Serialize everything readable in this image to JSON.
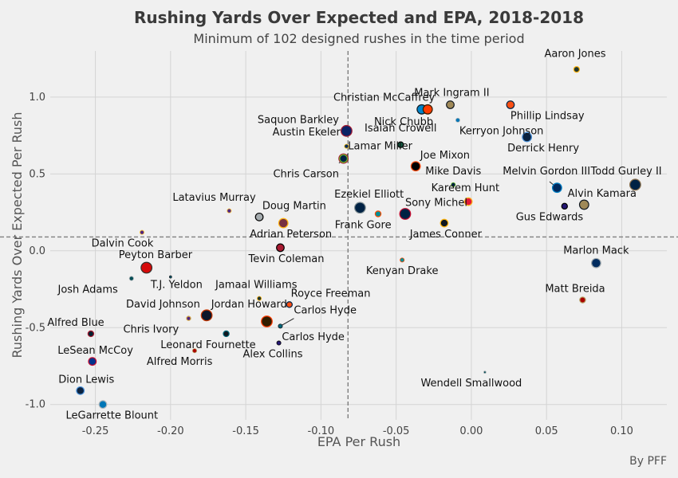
{
  "chart_data": {
    "type": "scatter",
    "title": "Rushing Yards Over Expected and EPA, 2018-2018",
    "subtitle": "Minimum of 102 designed rushes in the time period",
    "xlabel": "EPA Per Rush",
    "ylabel": "Rushing Yards Over Expected Per Rush",
    "credit": "By PFF",
    "xlim": [
      -0.28,
      0.13
    ],
    "ylim": [
      -1.1,
      1.3
    ],
    "xticks": [
      -0.25,
      -0.2,
      -0.15,
      -0.1,
      -0.05,
      0.0,
      0.05,
      0.1
    ],
    "xtick_labels": [
      "-0.25",
      "-0.20",
      "-0.15",
      "-0.10",
      "-0.05",
      "0.00",
      "0.05",
      "0.10"
    ],
    "yticks": [
      -1.0,
      -0.5,
      0.0,
      0.5,
      1.0
    ],
    "ytick_labels": [
      "-1.0",
      "-0.5",
      "0.0",
      "0.5",
      "1.0"
    ],
    "grid": true,
    "reference_lines": {
      "x": -0.082,
      "y": 0.09
    },
    "points": [
      {
        "name": "Aaron Jones",
        "x": 0.07,
        "y": 1.18,
        "size": 3,
        "color": "#203731",
        "edge": "#ffb612"
      },
      {
        "name": "Mark Ingram II",
        "x": -0.014,
        "y": 0.95,
        "size": 4,
        "color": "#9f8958",
        "edge": "#101820"
      },
      {
        "name": "Christian McCaffrey",
        "x": -0.033,
        "y": 0.92,
        "size": 5,
        "color": "#0085ca",
        "edge": "#101820"
      },
      {
        "name": "Nick Chubb",
        "x": -0.029,
        "y": 0.92,
        "size": 5,
        "color": "#ff3c00",
        "edge": "#311d00"
      },
      {
        "name": "Phillip Lindsay",
        "x": 0.026,
        "y": 0.95,
        "size": 4,
        "color": "#fb4f14",
        "edge": "#002244"
      },
      {
        "name": "Kerryon Johnson",
        "x": -0.009,
        "y": 0.85,
        "size": 2,
        "color": "#0076b6",
        "edge": "#b0b7bc"
      },
      {
        "name": "Saquon Barkley",
        "x": -0.083,
        "y": 0.78,
        "size": 6,
        "color": "#0b2265",
        "edge": "#a71930"
      },
      {
        "name": "Derrick Henry",
        "x": 0.037,
        "y": 0.74,
        "size": 5,
        "color": "#0c2340",
        "edge": "#4b92db"
      },
      {
        "name": "Isaiah Crowell",
        "x": -0.047,
        "y": 0.69,
        "size": 3,
        "color": "#125740",
        "edge": "#000000"
      },
      {
        "name": "Austin Ekeler",
        "x": -0.083,
        "y": 0.68,
        "size": 2,
        "color": "#002a5e",
        "edge": "#ffc20e"
      },
      {
        "name": "Lamar Miller",
        "x": -0.085,
        "y": 0.6,
        "size": 5,
        "color": "#03202f",
        "edge": "#a71930"
      },
      {
        "name": "Chris Carson",
        "x": -0.085,
        "y": 0.6,
        "size": 4,
        "color": "#002244",
        "edge": "#69be28"
      },
      {
        "name": "Joe Mixon",
        "x": -0.037,
        "y": 0.55,
        "size": 5,
        "color": "#000000",
        "edge": "#fb4f14"
      },
      {
        "name": "Mike Davis",
        "x": -0.012,
        "y": 0.43,
        "size": 2,
        "color": "#002244",
        "edge": "#69be28"
      },
      {
        "name": "Melvin Gordon III",
        "x": 0.057,
        "y": 0.41,
        "size": 5,
        "color": "#002a5e",
        "edge": "#0080c6"
      },
      {
        "name": "Todd Gurley II",
        "x": 0.109,
        "y": 0.43,
        "size": 6,
        "color": "#002244",
        "edge": "#866d4b"
      },
      {
        "name": "Kareem Hunt",
        "x": -0.002,
        "y": 0.32,
        "size": 4,
        "color": "#e31837",
        "edge": "#ffb81c"
      },
      {
        "name": "Alvin Kamara",
        "x": 0.075,
        "y": 0.3,
        "size": 5,
        "color": "#9f8958",
        "edge": "#101820"
      },
      {
        "name": "Gus Edwards",
        "x": 0.062,
        "y": 0.29,
        "size": 3,
        "color": "#241773",
        "edge": "#000000"
      },
      {
        "name": "Ezekiel Elliott",
        "x": -0.074,
        "y": 0.28,
        "size": 6,
        "color": "#002244",
        "edge": "#869397"
      },
      {
        "name": "Frank Gore",
        "x": -0.062,
        "y": 0.24,
        "size": 3,
        "color": "#008e97",
        "edge": "#fc4c02"
      },
      {
        "name": "Sony Michel",
        "x": -0.044,
        "y": 0.24,
        "size": 6,
        "color": "#002244",
        "edge": "#c60c30"
      },
      {
        "name": "James Conner",
        "x": -0.018,
        "y": 0.18,
        "size": 4,
        "color": "#101820",
        "edge": "#ffb612"
      },
      {
        "name": "Latavius Murray",
        "x": -0.161,
        "y": 0.26,
        "size": 2,
        "color": "#4f2683",
        "edge": "#ffc62f"
      },
      {
        "name": "Doug Martin",
        "x": -0.141,
        "y": 0.22,
        "size": 4,
        "color": "#a5acaf",
        "edge": "#000000"
      },
      {
        "name": "Adrian Peterson",
        "x": -0.125,
        "y": 0.18,
        "size": 5,
        "color": "#773141",
        "edge": "#ffb612"
      },
      {
        "name": "Dalvin Cook",
        "x": -0.219,
        "y": 0.12,
        "size": 2,
        "color": "#4f2683",
        "edge": "#ffc62f"
      },
      {
        "name": "Tevin Coleman",
        "x": -0.127,
        "y": 0.02,
        "size": 4,
        "color": "#a71930",
        "edge": "#000000"
      },
      {
        "name": "Kenyan Drake",
        "x": -0.046,
        "y": -0.06,
        "size": 2,
        "color": "#008e97",
        "edge": "#fc4c02"
      },
      {
        "name": "Marlon Mack",
        "x": 0.083,
        "y": -0.08,
        "size": 5,
        "color": "#002c5f",
        "edge": "#a2aaad"
      },
      {
        "name": "Peyton Barber",
        "x": -0.216,
        "y": -0.11,
        "size": 6,
        "color": "#d50a0a",
        "edge": "#34302b"
      },
      {
        "name": "Josh Adams",
        "x": -0.226,
        "y": -0.18,
        "size": 2,
        "color": "#004c54",
        "edge": "#a5acaf"
      },
      {
        "name": "T.J. Yeldon",
        "x": -0.2,
        "y": -0.17,
        "size": 1,
        "color": "#006778",
        "edge": "#101820"
      },
      {
        "name": "Jamaal Williams",
        "x": -0.141,
        "y": -0.31,
        "size": 2,
        "color": "#203731",
        "edge": "#ffb612"
      },
      {
        "name": "Royce Freeman",
        "x": -0.121,
        "y": -0.35,
        "size": 3,
        "color": "#fb4f14",
        "edge": "#002244"
      },
      {
        "name": "David Johnson",
        "x": -0.188,
        "y": -0.44,
        "size": 2,
        "color": "#97233f",
        "edge": "#000000"
      },
      {
        "name": "Jordan Howard",
        "x": -0.176,
        "y": -0.42,
        "size": 6,
        "color": "#0b162a",
        "edge": "#c83803"
      },
      {
        "name": "Carlos Hyde",
        "x": -0.136,
        "y": -0.46,
        "size": 6,
        "color": "#311d00",
        "edge": "#ff3c00"
      },
      {
        "name": "Carlos Hyde",
        "x": -0.127,
        "y": -0.49,
        "size": 2,
        "color": "#006778",
        "edge": "#101820"
      },
      {
        "name": "Chris Ivory",
        "x": -0.188,
        "y": -0.44,
        "size": 2,
        "color": "#4f2683",
        "edge": "#ffc62f"
      },
      {
        "name": "Leonard Fournette",
        "x": -0.163,
        "y": -0.54,
        "size": 3,
        "color": "#101820",
        "edge": "#006778"
      },
      {
        "name": "Alex Collins",
        "x": -0.128,
        "y": -0.6,
        "size": 2,
        "color": "#241773",
        "edge": "#000000"
      },
      {
        "name": "Alfred Blue",
        "x": -0.253,
        "y": -0.54,
        "size": 3,
        "color": "#03202f",
        "edge": "#a71930"
      },
      {
        "name": "Alfred Morris",
        "x": -0.184,
        "y": -0.65,
        "size": 2,
        "color": "#aa0000",
        "edge": "#b3995d"
      },
      {
        "name": "LeSean McCoy",
        "x": -0.252,
        "y": -0.72,
        "size": 4,
        "color": "#00338d",
        "edge": "#c60c30"
      },
      {
        "name": "Matt Breida",
        "x": 0.074,
        "y": -0.32,
        "size": 3,
        "color": "#aa0000",
        "edge": "#b3995d"
      },
      {
        "name": "Wendell Smallwood",
        "x": 0.009,
        "y": -0.79,
        "size": 1,
        "color": "#004c54",
        "edge": "#a5acaf"
      },
      {
        "name": "Dion Lewis",
        "x": -0.26,
        "y": -0.91,
        "size": 4,
        "color": "#0c2340",
        "edge": "#4b92db"
      },
      {
        "name": "LeGarrette Blount",
        "x": -0.245,
        "y": -1.0,
        "size": 4,
        "color": "#0076b6",
        "edge": "#b0b7bc"
      }
    ],
    "labels": [
      {
        "text": "Aaron Jones",
        "x": 0.069,
        "y": 1.2,
        "anchor": "middle",
        "dy": -12
      },
      {
        "text": "Mark Ingram II",
        "x": -0.013,
        "y": 0.96,
        "anchor": "middle",
        "dy": -9
      },
      {
        "text": "Christian McCaffrey",
        "x": -0.058,
        "y": 0.93,
        "anchor": "middle",
        "dy": -9
      },
      {
        "text": "Phillip Lindsay",
        "x": 0.026,
        "y": 0.93,
        "anchor": "start",
        "dy": 14
      },
      {
        "text": "Nick Chubb",
        "x": -0.045,
        "y": 0.9,
        "anchor": "middle",
        "dy": 16
      },
      {
        "text": "Kerryon Johnson",
        "x": -0.008,
        "y": 0.83,
        "anchor": "start",
        "dy": 14
      },
      {
        "text": "Saquon Barkley",
        "x": -0.088,
        "y": 0.8,
        "anchor": "end",
        "dy": -6
      },
      {
        "text": "Derrick Henry",
        "x": 0.024,
        "y": 0.72,
        "anchor": "start",
        "dy": 14
      },
      {
        "text": "Isaiah Crowell",
        "x": -0.047,
        "y": 0.73,
        "anchor": "middle",
        "dy": -9
      },
      {
        "text": "Austin Ekeler",
        "x": -0.087,
        "y": 0.72,
        "anchor": "end",
        "dy": -6
      },
      {
        "text": "Lamar Miller",
        "x": -0.082,
        "y": 0.63,
        "anchor": "start",
        "dy": -6
      },
      {
        "text": "Chris Carson",
        "x": -0.088,
        "y": 0.55,
        "anchor": "end",
        "dy": 14
      },
      {
        "text": "Joe Mixon",
        "x": -0.034,
        "y": 0.57,
        "anchor": "start",
        "dy": -6
      },
      {
        "text": "Mike Davis",
        "x": -0.012,
        "y": 0.45,
        "anchor": "middle",
        "dy": -9
      },
      {
        "text": "Melvin Gordon III",
        "x": 0.05,
        "y": 0.45,
        "anchor": "middle",
        "dy": -9
      },
      {
        "text": "Todd Gurley II",
        "x": 0.103,
        "y": 0.45,
        "anchor": "middle",
        "dy": -9
      },
      {
        "text": "Kareem Hunt",
        "x": -0.004,
        "y": 0.34,
        "anchor": "middle",
        "dy": -9
      },
      {
        "text": "Alvin Kamara",
        "x": 0.064,
        "y": 0.32,
        "anchor": "start",
        "dy": -6
      },
      {
        "text": "Gus Edwards",
        "x": 0.052,
        "y": 0.27,
        "anchor": "middle",
        "dy": 14
      },
      {
        "text": "Ezekiel Elliott",
        "x": -0.068,
        "y": 0.3,
        "anchor": "middle",
        "dy": -9
      },
      {
        "text": "Frank Gore",
        "x": -0.072,
        "y": 0.22,
        "anchor": "middle",
        "dy": 14
      },
      {
        "text": "Sony Michel",
        "x": -0.044,
        "y": 0.26,
        "anchor": "start",
        "dy": -6
      },
      {
        "text": "James Conner",
        "x": -0.017,
        "y": 0.16,
        "anchor": "middle",
        "dy": 14
      },
      {
        "text": "Latavius Murray",
        "x": -0.171,
        "y": 0.28,
        "anchor": "middle",
        "dy": -9
      },
      {
        "text": "Doug Martin",
        "x": -0.139,
        "y": 0.24,
        "anchor": "start",
        "dy": -6
      },
      {
        "text": "Adrian Peterson",
        "x": -0.12,
        "y": 0.16,
        "anchor": "middle",
        "dy": 14
      },
      {
        "text": "Dalvin Cook",
        "x": -0.232,
        "y": 0.1,
        "anchor": "middle",
        "dy": 14
      },
      {
        "text": "Tevin Coleman",
        "x": -0.123,
        "y": 0.0,
        "anchor": "middle",
        "dy": 14
      },
      {
        "text": "Kenyan Drake",
        "x": -0.046,
        "y": -0.08,
        "anchor": "middle",
        "dy": 14
      },
      {
        "text": "Marlon Mack",
        "x": 0.083,
        "y": -0.05,
        "anchor": "middle",
        "dy": -6
      },
      {
        "text": "Peyton Barber",
        "x": -0.21,
        "y": -0.08,
        "anchor": "middle",
        "dy": -6
      },
      {
        "text": "Josh Adams",
        "x": -0.255,
        "y": -0.2,
        "anchor": "middle",
        "dy": 14
      },
      {
        "text": "T.J. Yeldon",
        "x": -0.196,
        "y": -0.17,
        "anchor": "middle",
        "dy": 14
      },
      {
        "text": "Jamaal Williams",
        "x": -0.143,
        "y": -0.29,
        "anchor": "middle",
        "dy": -9
      },
      {
        "text": "Royce Freeman",
        "x": -0.12,
        "y": -0.33,
        "anchor": "start",
        "dy": -6
      },
      {
        "text": "David Johnson",
        "x": -0.205,
        "y": -0.4,
        "anchor": "middle",
        "dy": -6
      },
      {
        "text": "Jordan Howard",
        "x": -0.173,
        "y": -0.4,
        "anchor": "start",
        "dy": -6
      },
      {
        "text": "Carlos Hyde",
        "x": -0.118,
        "y": -0.44,
        "anchor": "start",
        "dy": -6
      },
      {
        "text": "Chris Ivory",
        "x": -0.213,
        "y": -0.46,
        "anchor": "middle",
        "dy": 14
      },
      {
        "text": "Carlos Hyde",
        "x": -0.126,
        "y": -0.51,
        "anchor": "start",
        "dy": 14
      },
      {
        "text": "Leonard Fournette",
        "x": -0.175,
        "y": -0.56,
        "anchor": "middle",
        "dy": 14
      },
      {
        "text": "Alex Collins",
        "x": -0.132,
        "y": -0.62,
        "anchor": "middle",
        "dy": 14
      },
      {
        "text": "Alfred Blue",
        "x": -0.263,
        "y": -0.52,
        "anchor": "middle",
        "dy": -6
      },
      {
        "text": "Alfred Morris",
        "x": -0.194,
        "y": -0.67,
        "anchor": "middle",
        "dy": 14
      },
      {
        "text": "LeSean McCoy",
        "x": -0.25,
        "y": -0.7,
        "anchor": "middle",
        "dy": -6
      },
      {
        "text": "Matt Breida",
        "x": 0.069,
        "y": -0.3,
        "anchor": "middle",
        "dy": -6
      },
      {
        "text": "Wendell Smallwood",
        "x": 0.0,
        "y": -0.81,
        "anchor": "middle",
        "dy": 14
      },
      {
        "text": "Dion Lewis",
        "x": -0.256,
        "y": -0.89,
        "anchor": "middle",
        "dy": -6
      },
      {
        "text": "LeGarrette Blount",
        "x": -0.239,
        "y": -1.02,
        "anchor": "middle",
        "dy": 14
      }
    ],
    "leader_lines": [
      {
        "from": [
          -0.083,
          0.8
        ],
        "to": [
          -0.082,
          0.78
        ]
      },
      {
        "from": [
          -0.082,
          0.63
        ],
        "to": [
          -0.085,
          0.6
        ]
      },
      {
        "from": [
          -0.088,
          0.57
        ],
        "to": [
          -0.085,
          0.6
        ]
      },
      {
        "from": [
          0.052,
          0.45
        ],
        "to": [
          0.057,
          0.41
        ]
      },
      {
        "from": [
          -0.118,
          -0.44
        ],
        "to": [
          -0.127,
          -0.49
        ]
      },
      {
        "from": [
          -0.128,
          0.18
        ],
        "to": [
          -0.125,
          0.18
        ]
      }
    ]
  }
}
